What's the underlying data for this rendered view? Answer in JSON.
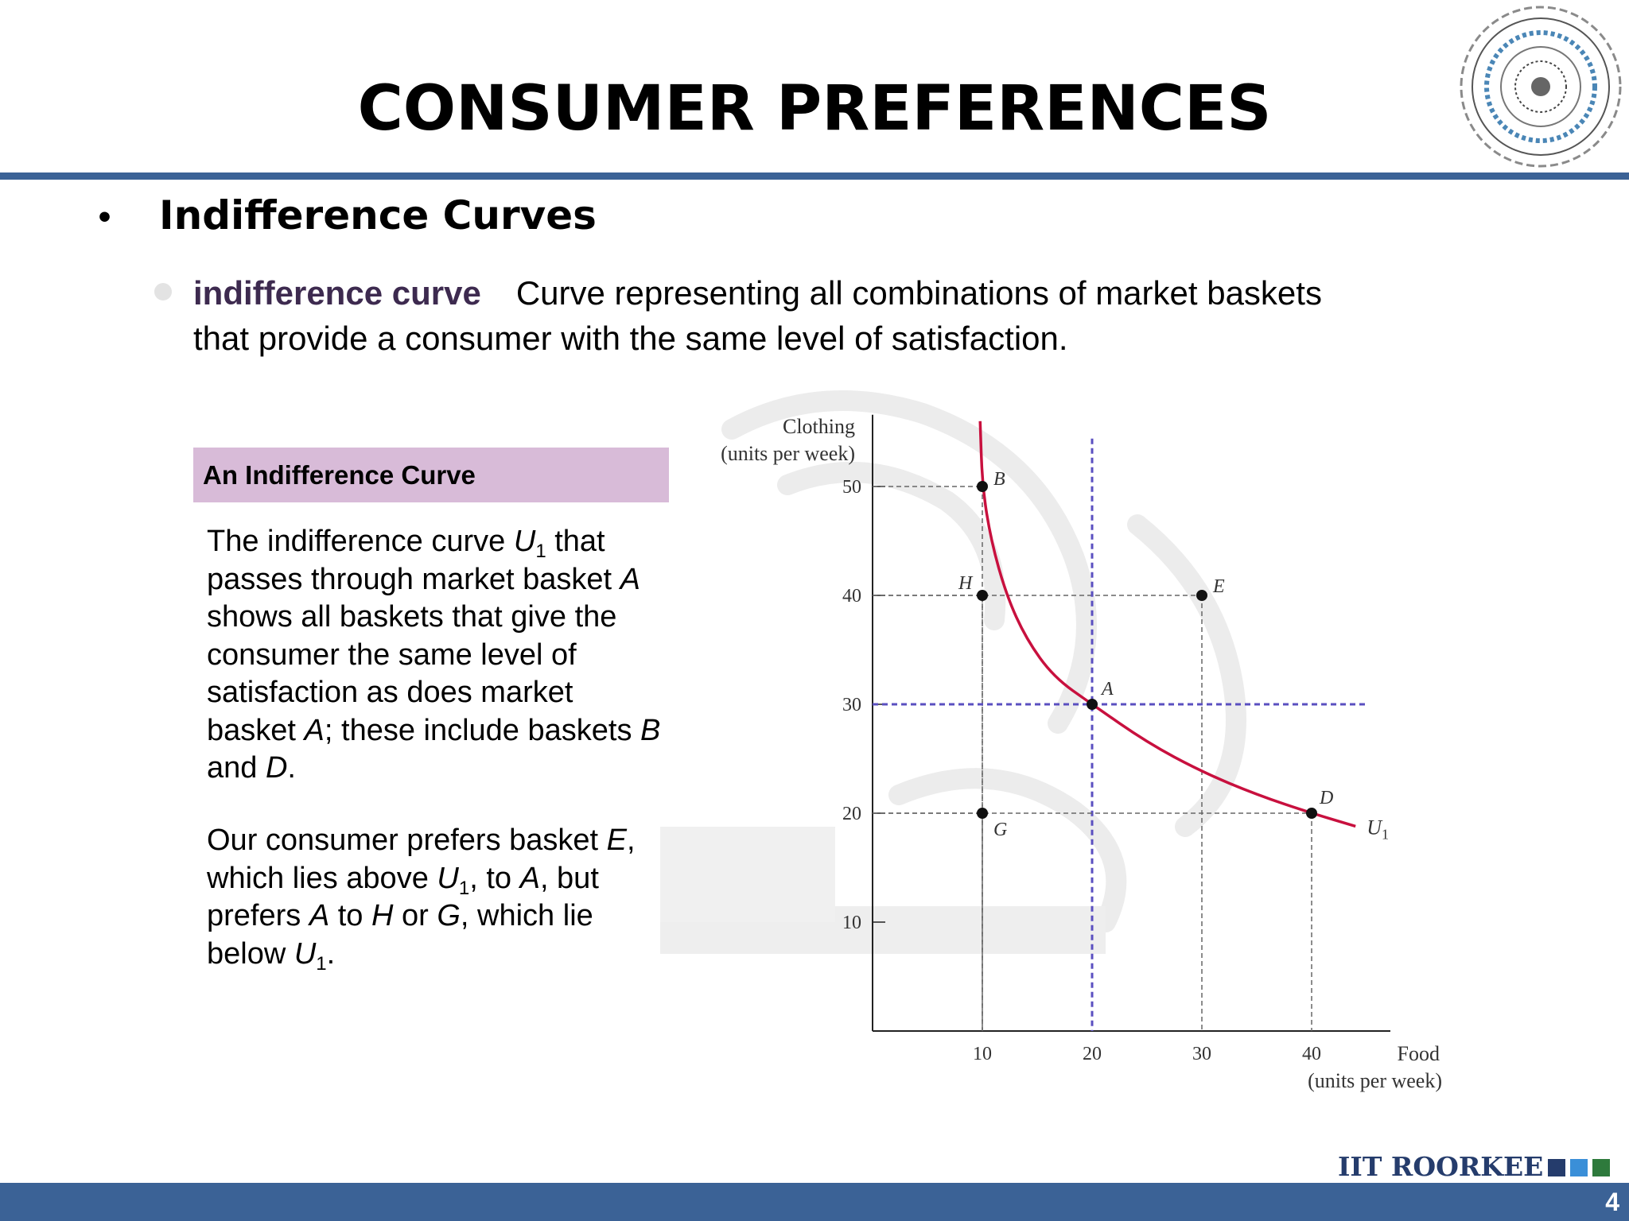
{
  "slide": {
    "title": "CONSUMER PREFERENCES",
    "heading": "Indifference Curves",
    "definition_term": "indifference curve",
    "definition_text": "Curve representing all combinations of market baskets that provide a consumer with the same level of satisfaction.",
    "box_title": "An Indifference Curve",
    "page_number": "4",
    "brand_text": "IIT ROORKEE",
    "brand_square_colors": [
      "#253c6c",
      "#3a8fd8",
      "#2e7a3c"
    ],
    "accent_color": "#3b6296"
  },
  "paragraphs": {
    "p1": {
      "t1": "The indifference curve ",
      "u": "U",
      "sub": "1",
      "t2": " that passes through market basket ",
      "a": "A",
      "t3": " shows all baskets that give the consumer the same level of satisfaction as does market basket ",
      "a2": "A",
      "t4": "; these include baskets ",
      "b": "B",
      "t5": " and ",
      "d": "D",
      "t6": "."
    },
    "p2": {
      "t1": "Our consumer prefers basket ",
      "e": "E",
      "t2": ", which lies above ",
      "u": "U",
      "sub": "1",
      "t3": ", to ",
      "a": "A",
      "t4": ", but prefers ",
      "a2": "A",
      "t5": " to ",
      "h": "H",
      "t6": " or ",
      "g": "G",
      "t7": ", which lie below ",
      "u2": "U",
      "sub2": "1",
      "t8": "."
    }
  },
  "chart_data": {
    "type": "line",
    "ylabel_line1": "Clothing",
    "ylabel_line2": "(units per week)",
    "xlabel_line1": "Food",
    "xlabel_line2": "(units per week)",
    "xlim": [
      0,
      45
    ],
    "ylim": [
      0,
      56
    ],
    "xticks": [
      10,
      20,
      30,
      40
    ],
    "yticks": [
      10,
      20,
      30,
      40,
      50
    ],
    "curve_label": "U",
    "curve_label_sub": "1",
    "curve_color": "#c8103e",
    "curve": [
      [
        9.8,
        56
      ],
      [
        10,
        50
      ],
      [
        10.8,
        45
      ],
      [
        12.2,
        40
      ],
      [
        14,
        36
      ],
      [
        16.5,
        32.5
      ],
      [
        20,
        30
      ],
      [
        25,
        26.5
      ],
      [
        30,
        23.8
      ],
      [
        35,
        21.7
      ],
      [
        40,
        20
      ],
      [
        44,
        18.8
      ]
    ],
    "points": [
      {
        "label": "B",
        "x": 10,
        "y": 50
      },
      {
        "label": "H",
        "x": 10,
        "y": 40
      },
      {
        "label": "E",
        "x": 30,
        "y": 40
      },
      {
        "label": "A",
        "x": 20,
        "y": 30
      },
      {
        "label": "G",
        "x": 10,
        "y": 20
      },
      {
        "label": "D",
        "x": 40,
        "y": 20
      }
    ]
  }
}
